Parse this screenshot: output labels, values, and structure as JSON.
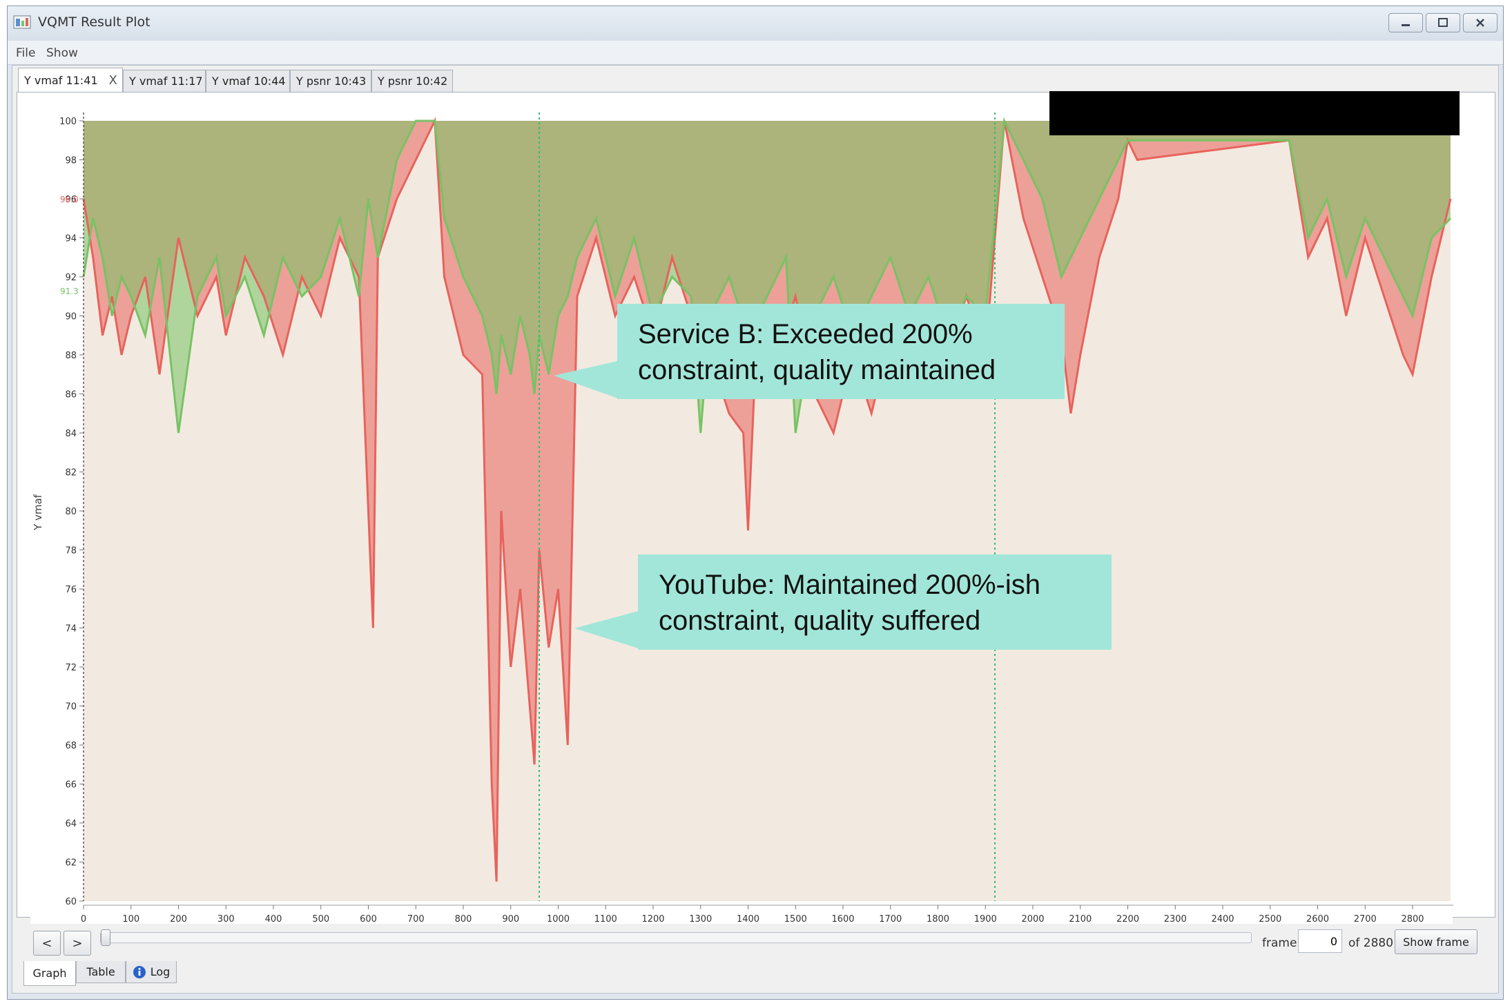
{
  "window": {
    "title": "VQMT Result Plot",
    "controls": [
      "minimize-icon",
      "maximize-icon",
      "close-icon"
    ]
  },
  "menu": [
    {
      "label": "File"
    },
    {
      "label": "Show"
    }
  ],
  "tabs": [
    {
      "label": "Y vmaf 11:41",
      "active": true,
      "close": "X"
    },
    {
      "label": "Y vmaf 11:17"
    },
    {
      "label": "Y vmaf 10:44"
    },
    {
      "label": "Y psnr 10:43"
    },
    {
      "label": "Y psnr 10:42"
    }
  ],
  "chart_data": {
    "type": "line",
    "ylabel": "Y vmaf",
    "xlim": [
      0,
      2880
    ],
    "ylim": [
      60,
      100
    ],
    "x_ticks": [
      0,
      100,
      200,
      300,
      400,
      500,
      600,
      700,
      800,
      900,
      1000,
      1100,
      1200,
      1300,
      1400,
      1500,
      1600,
      1700,
      1800,
      1900,
      2000,
      2100,
      2200,
      2300,
      2400,
      2500,
      2600,
      2700,
      2800
    ],
    "y_ticks": [
      60,
      62,
      64,
      66,
      68,
      70,
      72,
      74,
      76,
      78,
      80,
      82,
      84,
      86,
      88,
      90,
      92,
      94,
      96,
      98,
      100
    ],
    "series_averages": {
      "red": "96.0",
      "green": "91.3"
    },
    "markers_x": [
      960,
      1920
    ],
    "series": [
      {
        "color": "#e8625c",
        "points": [
          [
            0,
            96
          ],
          [
            20,
            93
          ],
          [
            40,
            89
          ],
          [
            60,
            91
          ],
          [
            80,
            88
          ],
          [
            100,
            90
          ],
          [
            130,
            92
          ],
          [
            160,
            87
          ],
          [
            200,
            94
          ],
          [
            240,
            90
          ],
          [
            280,
            92
          ],
          [
            300,
            89
          ],
          [
            340,
            93
          ],
          [
            380,
            91
          ],
          [
            420,
            88
          ],
          [
            460,
            92
          ],
          [
            500,
            90
          ],
          [
            540,
            94
          ],
          [
            580,
            92
          ],
          [
            610,
            74
          ],
          [
            620,
            93
          ],
          [
            660,
            96
          ],
          [
            700,
            98
          ],
          [
            740,
            100
          ],
          [
            760,
            92
          ],
          [
            800,
            88
          ],
          [
            840,
            87
          ],
          [
            860,
            66
          ],
          [
            870,
            61
          ],
          [
            880,
            80
          ],
          [
            900,
            72
          ],
          [
            920,
            76
          ],
          [
            940,
            70
          ],
          [
            950,
            67
          ],
          [
            960,
            78
          ],
          [
            980,
            73
          ],
          [
            1000,
            76
          ],
          [
            1020,
            68
          ],
          [
            1040,
            91
          ],
          [
            1080,
            94
          ],
          [
            1120,
            90
          ],
          [
            1160,
            92
          ],
          [
            1200,
            89
          ],
          [
            1240,
            93
          ],
          [
            1280,
            90
          ],
          [
            1320,
            88
          ],
          [
            1360,
            85
          ],
          [
            1390,
            84
          ],
          [
            1400,
            79
          ],
          [
            1420,
            90
          ],
          [
            1460,
            88
          ],
          [
            1500,
            91
          ],
          [
            1540,
            86
          ],
          [
            1580,
            84
          ],
          [
            1620,
            88
          ],
          [
            1660,
            85
          ],
          [
            1700,
            89
          ],
          [
            1740,
            87
          ],
          [
            1780,
            90
          ],
          [
            1820,
            88
          ],
          [
            1860,
            91
          ],
          [
            1900,
            88
          ],
          [
            1940,
            100
          ],
          [
            1980,
            95
          ],
          [
            2020,
            92
          ],
          [
            2060,
            89
          ],
          [
            2080,
            85
          ],
          [
            2100,
            88
          ],
          [
            2140,
            93
          ],
          [
            2180,
            96
          ],
          [
            2200,
            99
          ],
          [
            2220,
            98
          ],
          [
            2540,
            99
          ],
          [
            2580,
            93
          ],
          [
            2620,
            95
          ],
          [
            2660,
            90
          ],
          [
            2700,
            94
          ],
          [
            2740,
            91
          ],
          [
            2780,
            88
          ],
          [
            2800,
            87
          ],
          [
            2840,
            92
          ],
          [
            2880,
            96
          ]
        ]
      },
      {
        "color": "#78c265",
        "points": [
          [
            0,
            92
          ],
          [
            20,
            95
          ],
          [
            40,
            93
          ],
          [
            60,
            90
          ],
          [
            80,
            92
          ],
          [
            100,
            91
          ],
          [
            130,
            89
          ],
          [
            160,
            93
          ],
          [
            200,
            84
          ],
          [
            240,
            91
          ],
          [
            280,
            93
          ],
          [
            300,
            90
          ],
          [
            340,
            92
          ],
          [
            380,
            89
          ],
          [
            420,
            93
          ],
          [
            460,
            91
          ],
          [
            500,
            92
          ],
          [
            540,
            95
          ],
          [
            580,
            91
          ],
          [
            600,
            96
          ],
          [
            620,
            93
          ],
          [
            660,
            98
          ],
          [
            700,
            100
          ],
          [
            740,
            100
          ],
          [
            760,
            95
          ],
          [
            800,
            92
          ],
          [
            840,
            90
          ],
          [
            860,
            88
          ],
          [
            870,
            86
          ],
          [
            880,
            89
          ],
          [
            900,
            87
          ],
          [
            920,
            90
          ],
          [
            940,
            88
          ],
          [
            950,
            86
          ],
          [
            960,
            89
          ],
          [
            980,
            87
          ],
          [
            1000,
            90
          ],
          [
            1020,
            91
          ],
          [
            1040,
            93
          ],
          [
            1080,
            95
          ],
          [
            1120,
            91
          ],
          [
            1160,
            94
          ],
          [
            1200,
            90
          ],
          [
            1240,
            92
          ],
          [
            1280,
            91
          ],
          [
            1300,
            84
          ],
          [
            1320,
            90
          ],
          [
            1360,
            92
          ],
          [
            1400,
            89
          ],
          [
            1440,
            91
          ],
          [
            1480,
            93
          ],
          [
            1500,
            84
          ],
          [
            1540,
            90
          ],
          [
            1580,
            92
          ],
          [
            1620,
            89
          ],
          [
            1660,
            91
          ],
          [
            1700,
            93
          ],
          [
            1740,
            90
          ],
          [
            1780,
            92
          ],
          [
            1820,
            89
          ],
          [
            1860,
            91
          ],
          [
            1900,
            90
          ],
          [
            1940,
            100
          ],
          [
            1980,
            98
          ],
          [
            2020,
            96
          ],
          [
            2060,
            92
          ],
          [
            2100,
            94
          ],
          [
            2140,
            96
          ],
          [
            2180,
            98
          ],
          [
            2200,
            99
          ],
          [
            2220,
            99
          ],
          [
            2540,
            99
          ],
          [
            2580,
            94
          ],
          [
            2620,
            96
          ],
          [
            2660,
            92
          ],
          [
            2700,
            95
          ],
          [
            2740,
            93
          ],
          [
            2780,
            91
          ],
          [
            2800,
            90
          ],
          [
            2840,
            94
          ],
          [
            2880,
            95
          ]
        ]
      }
    ]
  },
  "annotations": [
    {
      "text_line1": "Service B: Exceeded 200%",
      "text_line2": "constraint, quality maintained"
    },
    {
      "text_line1": "YouTube: Maintained 200%-ish",
      "text_line2": "constraint, quality suffered"
    }
  ],
  "nav": {
    "prev": "<",
    "next": ">"
  },
  "frame": {
    "label": "frame",
    "value": "0",
    "of_label": "of 2880",
    "show_label": "Show frame",
    "position_fraction": 0
  },
  "bottom_tabs": [
    {
      "label": "Graph",
      "active": true
    },
    {
      "label": "Table"
    },
    {
      "label": "Log",
      "icon": "info-icon"
    }
  ]
}
